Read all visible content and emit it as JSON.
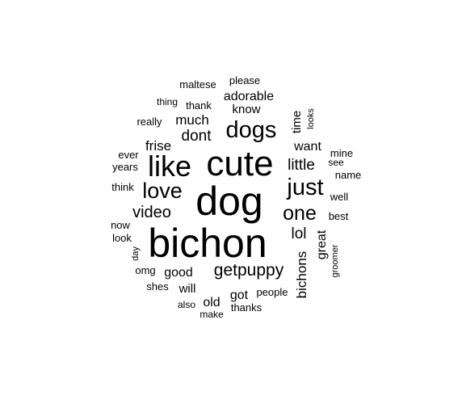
{
  "word_cloud": {
    "text_color": "#000000",
    "background_color": "#ffffff",
    "words": [
      {
        "text": "bichon"
      },
      {
        "text": "dog"
      },
      {
        "text": "cute"
      },
      {
        "text": "like"
      },
      {
        "text": "dogs"
      },
      {
        "text": "just"
      },
      {
        "text": "love"
      },
      {
        "text": "one"
      },
      {
        "text": "getpuppy"
      },
      {
        "text": "video"
      },
      {
        "text": "little"
      },
      {
        "text": "lol"
      },
      {
        "text": "bichons"
      },
      {
        "text": "dont"
      },
      {
        "text": "much"
      },
      {
        "text": "frise"
      },
      {
        "text": "want"
      },
      {
        "text": "time"
      },
      {
        "text": "adorable"
      },
      {
        "text": "know"
      },
      {
        "text": "good"
      },
      {
        "text": "great"
      },
      {
        "text": "will"
      },
      {
        "text": "got"
      },
      {
        "text": "old"
      },
      {
        "text": "thank"
      },
      {
        "text": "thing"
      },
      {
        "text": "really"
      },
      {
        "text": "maltese"
      },
      {
        "text": "please"
      },
      {
        "text": "looks"
      },
      {
        "text": "ever"
      },
      {
        "text": "years"
      },
      {
        "text": "mine"
      },
      {
        "text": "see"
      },
      {
        "text": "name"
      },
      {
        "text": "think"
      },
      {
        "text": "well"
      },
      {
        "text": "best"
      },
      {
        "text": "now"
      },
      {
        "text": "look"
      },
      {
        "text": "day"
      },
      {
        "text": "omg"
      },
      {
        "text": "groomer"
      },
      {
        "text": "shes"
      },
      {
        "text": "people"
      },
      {
        "text": "also"
      },
      {
        "text": "thanks"
      },
      {
        "text": "make"
      }
    ]
  }
}
